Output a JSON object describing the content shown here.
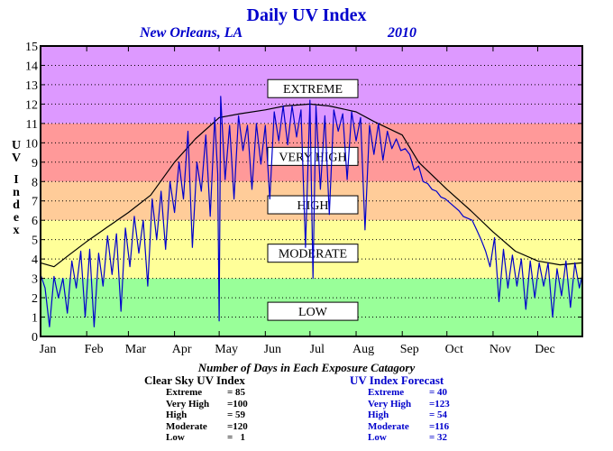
{
  "chart_data": {
    "type": "line",
    "title": "Daily UV Index",
    "subtitle_location": "New Orleans, LA",
    "subtitle_year": "2010",
    "ylabel": "UV Index",
    "ylim": [
      0,
      15
    ],
    "yticks": [
      "0",
      "1",
      "2",
      "3",
      "4",
      "5",
      "6",
      "7",
      "8",
      "9",
      "10",
      "11",
      "12",
      "13",
      "14",
      "15"
    ],
    "xlim": [
      1,
      365
    ],
    "month_ticks": [
      {
        "label": "Jan",
        "day": 1
      },
      {
        "label": "Feb",
        "day": 32
      },
      {
        "label": "Mar",
        "day": 60
      },
      {
        "label": "Apr",
        "day": 91
      },
      {
        "label": "May",
        "day": 121
      },
      {
        "label": "Jun",
        "day": 152
      },
      {
        "label": "Jul",
        "day": 182
      },
      {
        "label": "Aug",
        "day": 213
      },
      {
        "label": "Sep",
        "day": 244
      },
      {
        "label": "Oct",
        "day": 274
      },
      {
        "label": "Nov",
        "day": 305
      },
      {
        "label": "Dec",
        "day": 335
      }
    ],
    "grid": "dotted horizontal",
    "bands": [
      {
        "name": "LOW",
        "from": 0,
        "to": 3,
        "color": "#99ff99"
      },
      {
        "name": "MODERATE",
        "from": 3,
        "to": 6,
        "color": "#ffff99"
      },
      {
        "name": "HIGH",
        "from": 6,
        "to": 8,
        "color": "#ffcc99"
      },
      {
        "name": "VERY HIGH",
        "from": 8,
        "to": 11,
        "color": "#ff9999"
      },
      {
        "name": "EXTREME",
        "from": 11,
        "to": 15,
        "color": "#dd99ff"
      }
    ],
    "band_labels": [
      {
        "text": "EXTREME",
        "y": 12.8
      },
      {
        "text": "VERY HIGH",
        "y": 9.3
      },
      {
        "text": "HIGH",
        "y": 6.8
      },
      {
        "text": "MODERATE",
        "y": 4.3
      },
      {
        "text": "LOW",
        "y": 1.3
      }
    ],
    "series": [
      {
        "name": "Clear Sky UV Index",
        "color": "#000000",
        "points": [
          [
            1,
            3.8
          ],
          [
            10,
            3.6
          ],
          [
            20,
            4.2
          ],
          [
            32,
            4.9
          ],
          [
            45,
            5.6
          ],
          [
            60,
            6.4
          ],
          [
            75,
            7.3
          ],
          [
            91,
            9.0
          ],
          [
            105,
            10.2
          ],
          [
            121,
            11.3
          ],
          [
            135,
            11.5
          ],
          [
            152,
            11.7
          ],
          [
            165,
            11.9
          ],
          [
            182,
            12.0
          ],
          [
            195,
            11.9
          ],
          [
            213,
            11.6
          ],
          [
            225,
            11.1
          ],
          [
            244,
            10.4
          ],
          [
            255,
            9.0
          ],
          [
            274,
            7.6
          ],
          [
            290,
            6.5
          ],
          [
            305,
            5.4
          ],
          [
            320,
            4.4
          ],
          [
            335,
            3.9
          ],
          [
            350,
            3.7
          ],
          [
            365,
            3.8
          ]
        ]
      },
      {
        "name": "UV Index Forecast",
        "color": "#0000cc",
        "points": [
          [
            1,
            3.2
          ],
          [
            4,
            2.5
          ],
          [
            7,
            0.5
          ],
          [
            10,
            3.1
          ],
          [
            13,
            2.0
          ],
          [
            16,
            3.0
          ],
          [
            19,
            1.2
          ],
          [
            22,
            3.9
          ],
          [
            25,
            2.5
          ],
          [
            28,
            4.4
          ],
          [
            31,
            1.0
          ],
          [
            34,
            4.5
          ],
          [
            37,
            0.5
          ],
          [
            40,
            4.3
          ],
          [
            43,
            2.6
          ],
          [
            46,
            5.2
          ],
          [
            49,
            3.2
          ],
          [
            52,
            5.3
          ],
          [
            55,
            1.3
          ],
          [
            58,
            5.6
          ],
          [
            61,
            3.6
          ],
          [
            64,
            6.2
          ],
          [
            67,
            4.3
          ],
          [
            70,
            6.0
          ],
          [
            73,
            2.6
          ],
          [
            76,
            7.1
          ],
          [
            79,
            5.0
          ],
          [
            82,
            7.5
          ],
          [
            85,
            4.5
          ],
          [
            88,
            8.0
          ],
          [
            91,
            6.4
          ],
          [
            94,
            9.0
          ],
          [
            97,
            7.1
          ],
          [
            100,
            10.6
          ],
          [
            103,
            4.6
          ],
          [
            106,
            9.0
          ],
          [
            109,
            7.5
          ],
          [
            112,
            10.4
          ],
          [
            115,
            6.2
          ],
          [
            118,
            11.3
          ],
          [
            120,
            8.4
          ],
          [
            121,
            0.8
          ],
          [
            122,
            12.4
          ],
          [
            125,
            8.1
          ],
          [
            128,
            10.9
          ],
          [
            131,
            7.1
          ],
          [
            134,
            11.4
          ],
          [
            137,
            9.6
          ],
          [
            140,
            10.9
          ],
          [
            143,
            7.6
          ],
          [
            146,
            11.0
          ],
          [
            149,
            8.9
          ],
          [
            152,
            10.9
          ],
          [
            155,
            7.1
          ],
          [
            158,
            11.6
          ],
          [
            161,
            10.1
          ],
          [
            164,
            11.9
          ],
          [
            167,
            9.9
          ],
          [
            170,
            11.9
          ],
          [
            173,
            10.3
          ],
          [
            176,
            11.7
          ],
          [
            179,
            4.6
          ],
          [
            182,
            12.2
          ],
          [
            184,
            3.0
          ],
          [
            186,
            11.9
          ],
          [
            189,
            7.6
          ],
          [
            192,
            11.4
          ],
          [
            195,
            6.3
          ],
          [
            198,
            11.7
          ],
          [
            201,
            10.6
          ],
          [
            204,
            11.5
          ],
          [
            207,
            8.1
          ],
          [
            210,
            11.6
          ],
          [
            213,
            10.1
          ],
          [
            216,
            11.3
          ],
          [
            219,
            5.5
          ],
          [
            222,
            10.9
          ],
          [
            225,
            9.4
          ],
          [
            228,
            11.0
          ],
          [
            231,
            9.1
          ],
          [
            234,
            10.6
          ],
          [
            237,
            9.7
          ],
          [
            240,
            10.2
          ],
          [
            243,
            9.6
          ],
          [
            246,
            9.7
          ],
          [
            249,
            9.4
          ],
          [
            252,
            8.6
          ],
          [
            255,
            8.8
          ],
          [
            258,
            8.0
          ],
          [
            261,
            7.9
          ],
          [
            264,
            7.6
          ],
          [
            267,
            7.5
          ],
          [
            270,
            7.2
          ],
          [
            273,
            7.1
          ],
          [
            276,
            6.9
          ],
          [
            279,
            6.7
          ],
          [
            282,
            6.5
          ],
          [
            285,
            6.2
          ],
          [
            288,
            6.1
          ],
          [
            291,
            6.0
          ],
          [
            294,
            5.5
          ],
          [
            297,
            5.0
          ],
          [
            300,
            4.4
          ],
          [
            303,
            3.6
          ],
          [
            306,
            5.1
          ],
          [
            309,
            1.8
          ],
          [
            312,
            4.5
          ],
          [
            315,
            2.5
          ],
          [
            318,
            4.2
          ],
          [
            321,
            2.6
          ],
          [
            324,
            4.0
          ],
          [
            327,
            1.4
          ],
          [
            330,
            3.9
          ],
          [
            333,
            2.0
          ],
          [
            336,
            3.8
          ],
          [
            339,
            2.6
          ],
          [
            342,
            3.8
          ],
          [
            345,
            1.0
          ],
          [
            348,
            3.5
          ],
          [
            351,
            2.1
          ],
          [
            354,
            3.9
          ],
          [
            357,
            1.5
          ],
          [
            360,
            3.8
          ],
          [
            363,
            2.5
          ],
          [
            365,
            3.2
          ]
        ]
      }
    ],
    "footer": {
      "caption": "Number of Days in Each Exposure Catagory",
      "clear_sky": {
        "title": "Clear Sky UV Index",
        "rows": [
          {
            "label": "Extreme",
            "value": "= 85"
          },
          {
            "label": "Very High",
            "value": "=100"
          },
          {
            "label": "High",
            "value": "= 59"
          },
          {
            "label": "Moderate",
            "value": "=120"
          },
          {
            "label": "Low",
            "value": "=   1"
          }
        ]
      },
      "forecast": {
        "title": "UV Index Forecast",
        "rows": [
          {
            "label": "Extreme",
            "value": "= 40"
          },
          {
            "label": "Very High",
            "value": "=123"
          },
          {
            "label": "High",
            "value": "= 54"
          },
          {
            "label": "Moderate",
            "value": "=116"
          },
          {
            "label": "Low",
            "value": "= 32"
          }
        ]
      }
    }
  }
}
